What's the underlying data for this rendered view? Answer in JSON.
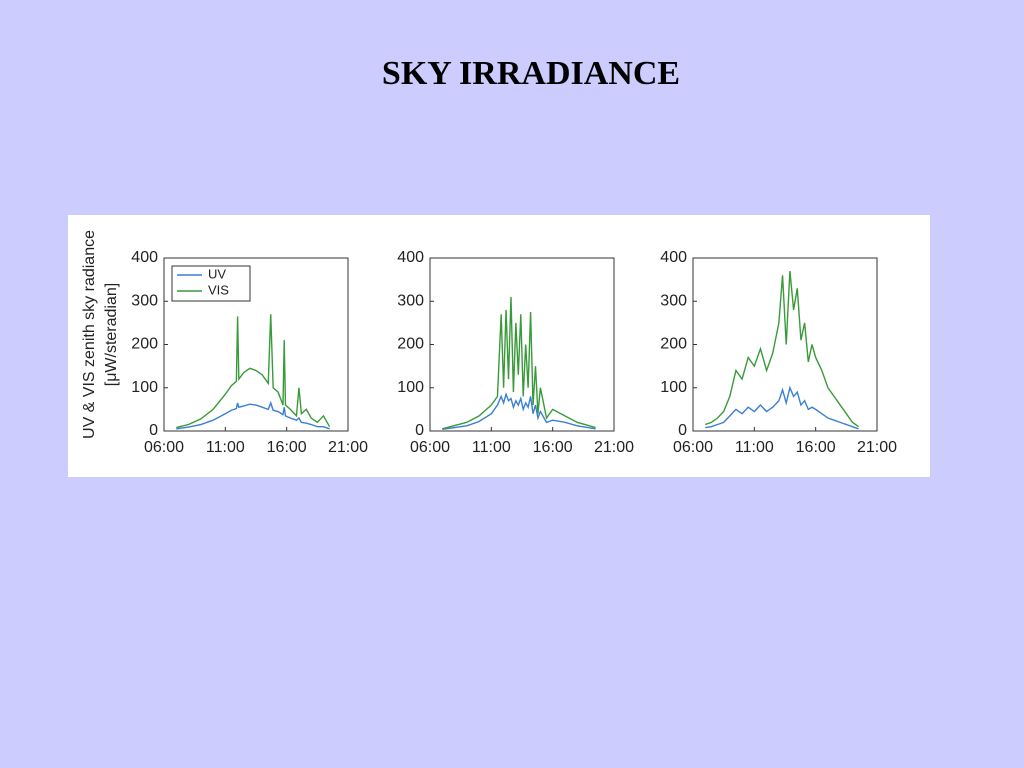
{
  "title": "SKY IRRADIANCE",
  "chart_data": [
    {
      "type": "line",
      "ylabel": [
        "UV & VIS zenith sky radiance",
        "[μW/steradian]"
      ],
      "legend": "upper left",
      "xlim": [
        6,
        21
      ],
      "xticks": [
        {
          "value": 6,
          "label": "06:00"
        },
        {
          "value": 11,
          "label": "11:00"
        },
        {
          "value": 16,
          "label": "16:00"
        },
        {
          "value": 21,
          "label": "21:00"
        }
      ],
      "ylim": [
        0,
        400
      ],
      "yticks": [
        0,
        100,
        200,
        300,
        400
      ],
      "x": [
        7,
        8,
        9,
        10,
        11,
        11.5,
        11.9,
        12,
        12.1,
        12.5,
        13,
        13.5,
        14,
        14.5,
        14.7,
        14.9,
        15.3,
        15.7,
        15.8,
        15.9,
        16.3,
        16.8,
        17,
        17.2,
        17.6,
        18,
        18.5,
        19,
        19.5
      ],
      "series": [
        {
          "name": "UV",
          "color": "#3a7fd5",
          "values": [
            5,
            9,
            15,
            25,
            40,
            48,
            52,
            65,
            55,
            58,
            62,
            60,
            55,
            50,
            65,
            48,
            45,
            38,
            55,
            35,
            30,
            25,
            30,
            20,
            18,
            15,
            10,
            10,
            5
          ]
        },
        {
          "name": "VIS",
          "color": "#3a9a3a",
          "values": [
            8,
            15,
            28,
            50,
            85,
            105,
            115,
            265,
            120,
            135,
            145,
            140,
            130,
            110,
            270,
            100,
            90,
            60,
            210,
            60,
            50,
            35,
            100,
            40,
            50,
            30,
            20,
            35,
            10
          ]
        }
      ]
    },
    {
      "type": "line",
      "xlim": [
        6,
        21
      ],
      "xticks": [
        {
          "value": 6,
          "label": "06:00"
        },
        {
          "value": 11,
          "label": "11:00"
        },
        {
          "value": 16,
          "label": "16:00"
        },
        {
          "value": 21,
          "label": "21:00"
        }
      ],
      "ylim": [
        0,
        400
      ],
      "yticks": [
        0,
        100,
        200,
        300,
        400
      ],
      "x": [
        7,
        9,
        10,
        11,
        11.5,
        11.8,
        12,
        12.2,
        12.4,
        12.6,
        12.8,
        13,
        13.2,
        13.4,
        13.6,
        13.8,
        14,
        14.2,
        14.4,
        14.6,
        14.8,
        15,
        15.5,
        16,
        17,
        18,
        19.5
      ],
      "series": [
        {
          "color": "#3a7fd5",
          "values": [
            4,
            12,
            22,
            40,
            60,
            80,
            65,
            85,
            70,
            75,
            55,
            70,
            60,
            75,
            50,
            65,
            55,
            80,
            40,
            60,
            30,
            45,
            20,
            25,
            20,
            12,
            5
          ]
        },
        {
          "color": "#3a9a3a",
          "values": [
            5,
            20,
            35,
            60,
            80,
            270,
            100,
            280,
            120,
            310,
            90,
            250,
            130,
            270,
            80,
            200,
            100,
            275,
            60,
            150,
            40,
            100,
            30,
            50,
            35,
            20,
            8
          ]
        }
      ]
    },
    {
      "type": "line",
      "xlim": [
        6,
        21
      ],
      "xticks": [
        {
          "value": 6,
          "label": "06:00"
        },
        {
          "value": 11,
          "label": "11:00"
        },
        {
          "value": 16,
          "label": "16:00"
        },
        {
          "value": 21,
          "label": "21:00"
        }
      ],
      "ylim": [
        0,
        400
      ],
      "yticks": [
        0,
        100,
        200,
        300,
        400
      ],
      "x": [
        7,
        7.5,
        8,
        8.5,
        9,
        9.5,
        10,
        10.5,
        11,
        11.5,
        12,
        12.5,
        13,
        13.3,
        13.6,
        13.9,
        14.2,
        14.5,
        14.8,
        15.1,
        15.4,
        15.7,
        16,
        16.5,
        17,
        17.5,
        18,
        19,
        19.5
      ],
      "series": [
        {
          "color": "#3a7fd5",
          "values": [
            8,
            10,
            15,
            20,
            35,
            50,
            40,
            55,
            45,
            60,
            45,
            55,
            70,
            95,
            65,
            100,
            80,
            90,
            60,
            70,
            50,
            55,
            50,
            40,
            30,
            25,
            20,
            10,
            5
          ]
        },
        {
          "color": "#3a9a3a",
          "values": [
            15,
            20,
            30,
            45,
            80,
            140,
            120,
            170,
            150,
            190,
            140,
            180,
            250,
            360,
            200,
            370,
            280,
            330,
            210,
            250,
            160,
            200,
            170,
            140,
            100,
            80,
            60,
            20,
            10
          ]
        }
      ]
    }
  ]
}
